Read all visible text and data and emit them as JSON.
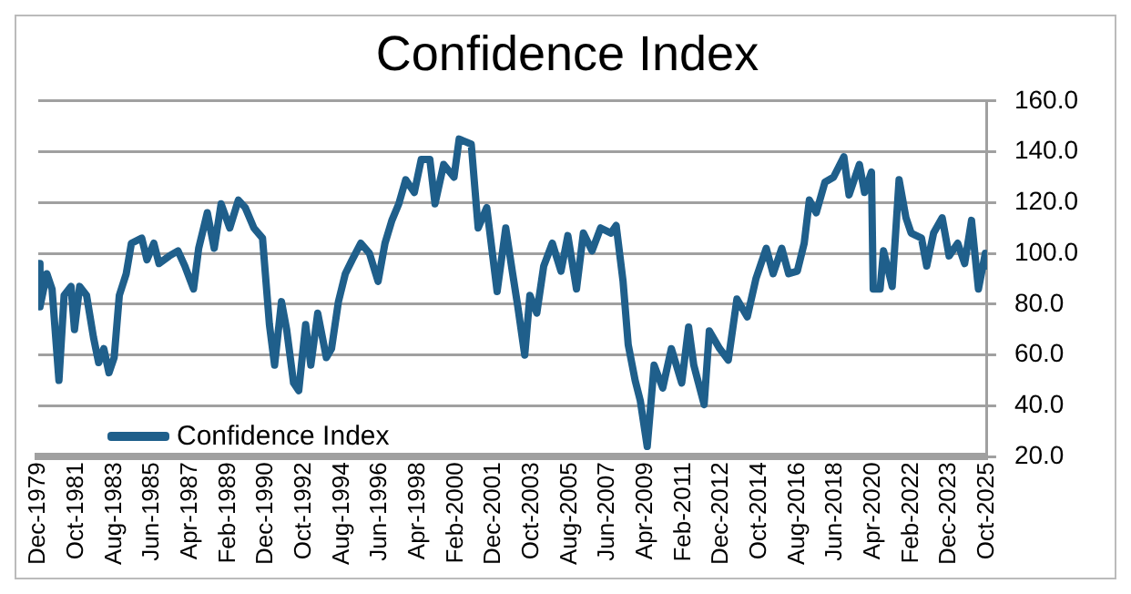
{
  "chart_data": {
    "type": "line",
    "title": "Confidence Index",
    "x": [
      "1979-12",
      "1980-01",
      "1980-05",
      "1980-08",
      "1980-12",
      "1981-03",
      "1981-07",
      "1981-09",
      "1981-12",
      "1982-04",
      "1982-08",
      "1982-11",
      "1983-02",
      "1983-05",
      "1983-08",
      "1983-11",
      "1984-03",
      "1984-06",
      "1984-12",
      "1985-03",
      "1985-07",
      "1985-10",
      "1986-04",
      "1986-09",
      "1987-01",
      "1987-06",
      "1987-09",
      "1988-02",
      "1988-06",
      "1988-10",
      "1989-03",
      "1989-08",
      "1989-12",
      "1990-05",
      "1990-10",
      "1991-02",
      "1991-05",
      "1991-09",
      "1991-12",
      "1992-04",
      "1992-07",
      "1992-11",
      "1993-02",
      "1993-06",
      "1993-11",
      "1994-02",
      "1994-06",
      "1994-10",
      "1995-02",
      "1995-07",
      "1995-12",
      "1996-05",
      "1996-09",
      "1997-01",
      "1997-05",
      "1997-09",
      "1998-02",
      "1998-06",
      "1998-11",
      "1999-02",
      "1999-07",
      "2000-01",
      "2000-04",
      "2000-11",
      "2001-03",
      "2001-08",
      "2002-02",
      "2002-07",
      "2002-11",
      "2003-02",
      "2003-06",
      "2003-09",
      "2004-01",
      "2004-05",
      "2004-10",
      "2005-03",
      "2005-07",
      "2005-12",
      "2006-04",
      "2006-09",
      "2007-02",
      "2007-08",
      "2007-11",
      "2008-03",
      "2008-06",
      "2008-10",
      "2009-01",
      "2009-05",
      "2009-09",
      "2010-02",
      "2010-07",
      "2011-01",
      "2011-05",
      "2011-08",
      "2012-02",
      "2012-05",
      "2012-11",
      "2013-04",
      "2013-09",
      "2014-03",
      "2014-08",
      "2015-02",
      "2015-06",
      "2015-11",
      "2016-03",
      "2016-08",
      "2016-12",
      "2017-03",
      "2017-07",
      "2017-12",
      "2018-05",
      "2018-11",
      "2019-02",
      "2019-08",
      "2019-11",
      "2020-03",
      "2020-04",
      "2020-08",
      "2020-10",
      "2021-03",
      "2021-07",
      "2021-11",
      "2022-02",
      "2022-08",
      "2022-11",
      "2023-03",
      "2023-08",
      "2023-12",
      "2024-05",
      "2024-09",
      "2025-01",
      "2025-05",
      "2025-09",
      "2025-10"
    ],
    "series": [
      {
        "name": "Confidence Index",
        "color": "#1f5f8b",
        "values": [
          96,
          79,
          92,
          86,
          50,
          83.5,
          87,
          70,
          87,
          83.5,
          67,
          57,
          62.5,
          53,
          59,
          83.5,
          92,
          104,
          106,
          97.5,
          104,
          96,
          99,
          101,
          95,
          86,
          102,
          116,
          102,
          119.5,
          110,
          121,
          118,
          110,
          106,
          72,
          56,
          81,
          70,
          49,
          46,
          72,
          56,
          76.5,
          59,
          62.5,
          81,
          92,
          97.5,
          104,
          100,
          89,
          104,
          113,
          119.5,
          129,
          124,
          137,
          137,
          119.5,
          135,
          130,
          145,
          143,
          110,
          118,
          85,
          110,
          92,
          79,
          60,
          83.5,
          76.5,
          95,
          104,
          93,
          107,
          86,
          108,
          101,
          110,
          108,
          111,
          89,
          64,
          50,
          42,
          24,
          56,
          47,
          62.5,
          49,
          71,
          56,
          40.5,
          69.5,
          62.5,
          58,
          82,
          75,
          90,
          102,
          92,
          102,
          92,
          93,
          104,
          121,
          116,
          128,
          130,
          138,
          123,
          135,
          124,
          132,
          86,
          86,
          101,
          87,
          129,
          114,
          108,
          106,
          95,
          108,
          114,
          99,
          104,
          96,
          113,
          86,
          100,
          95
        ]
      }
    ],
    "xlim": [
      "1979-12",
      "2025-10"
    ],
    "xticks": [
      {
        "value": "1979-12",
        "label": "Dec-1979"
      },
      {
        "value": "1981-10",
        "label": "Oct-1981"
      },
      {
        "value": "1983-08",
        "label": "Aug-1983"
      },
      {
        "value": "1985-06",
        "label": "Jun-1985"
      },
      {
        "value": "1987-04",
        "label": "Apr-1987"
      },
      {
        "value": "1989-02",
        "label": "Feb-1989"
      },
      {
        "value": "1990-12",
        "label": "Dec-1990"
      },
      {
        "value": "1992-10",
        "label": "Oct-1992"
      },
      {
        "value": "1994-08",
        "label": "Aug-1994"
      },
      {
        "value": "1996-06",
        "label": "Jun-1996"
      },
      {
        "value": "1998-04",
        "label": "Apr-1998"
      },
      {
        "value": "2000-02",
        "label": "Feb-2000"
      },
      {
        "value": "2001-12",
        "label": "Dec-2001"
      },
      {
        "value": "2003-10",
        "label": "Oct-2003"
      },
      {
        "value": "2005-08",
        "label": "Aug-2005"
      },
      {
        "value": "2007-06",
        "label": "Jun-2007"
      },
      {
        "value": "2009-04",
        "label": "Apr-2009"
      },
      {
        "value": "2011-02",
        "label": "Feb-2011"
      },
      {
        "value": "2012-12",
        "label": "Dec-2012"
      },
      {
        "value": "2014-10",
        "label": "Oct-2014"
      },
      {
        "value": "2016-08",
        "label": "Aug-2016"
      },
      {
        "value": "2018-06",
        "label": "Jun-2018"
      },
      {
        "value": "2020-04",
        "label": "Apr-2020"
      },
      {
        "value": "2022-02",
        "label": "Feb-2022"
      },
      {
        "value": "2023-12",
        "label": "Dec-2023"
      },
      {
        "value": "2025-10",
        "label": "Oct-2025"
      }
    ],
    "ylim": [
      20,
      160
    ],
    "yticks": [
      {
        "value": 20,
        "label": "20.0"
      },
      {
        "value": 40,
        "label": "40.0"
      },
      {
        "value": 60,
        "label": "60.0"
      },
      {
        "value": 80,
        "label": "80.0"
      },
      {
        "value": 100,
        "label": "100.0"
      },
      {
        "value": 120,
        "label": "120.0"
      },
      {
        "value": 140,
        "label": "140.0"
      },
      {
        "value": 160,
        "label": "160.0"
      }
    ],
    "grid": "y",
    "legend": "bottom left",
    "marker": "none",
    "line_style": "solid"
  }
}
